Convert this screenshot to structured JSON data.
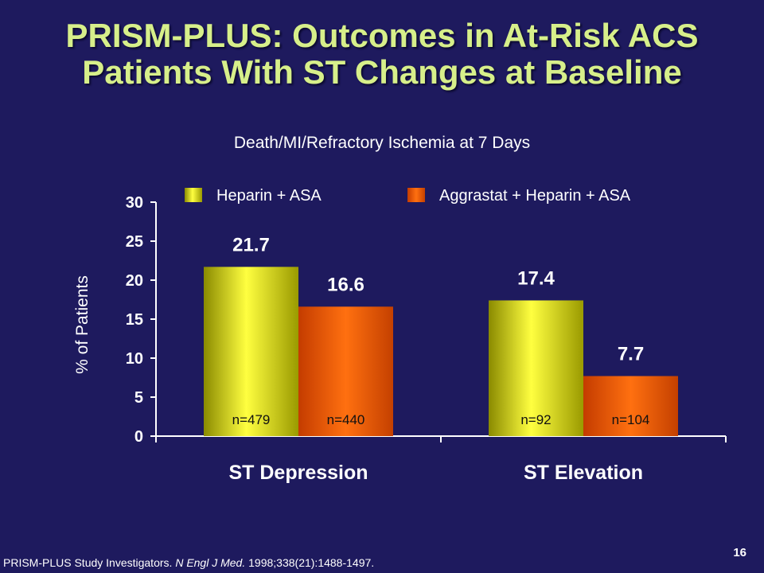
{
  "slide": {
    "title_line1": "PRISM-PLUS: Outcomes in At-Risk ACS",
    "title_line2": "Patients With ST Changes at Baseline",
    "subtitle": "Death/MI/Refractory Ischemia at 7 Days",
    "footnote_authors": "PRISM-PLUS Study Investigators.",
    "footnote_journal": "N Engl J Med.",
    "footnote_ref": "1998;338(21):1488-1497.",
    "page_number": "16"
  },
  "colors": {
    "background": "#1e1a5e",
    "title": "#d7ef8a",
    "heparin": "#e6e600",
    "aggrastat": "#ff6a00"
  },
  "chart_data": {
    "type": "bar",
    "categories": [
      "ST Depression",
      "ST Elevation"
    ],
    "ylabel": "% of Patients",
    "ylim": [
      0,
      30
    ],
    "yticks": [
      0,
      5,
      10,
      15,
      20,
      25,
      30
    ],
    "legend_position": "top",
    "grid": false,
    "series": [
      {
        "name": "Heparin + ASA",
        "values": [
          21.7,
          17.4
        ],
        "value_labels": [
          "21.7",
          "17.4"
        ],
        "n_labels": [
          "n=479",
          "n=92"
        ]
      },
      {
        "name": "Aggrastat + Heparin + ASA",
        "values": [
          16.6,
          7.7
        ],
        "value_labels": [
          "16.6",
          "7.7"
        ],
        "n_labels": [
          "n=440",
          "n=104"
        ]
      }
    ]
  }
}
